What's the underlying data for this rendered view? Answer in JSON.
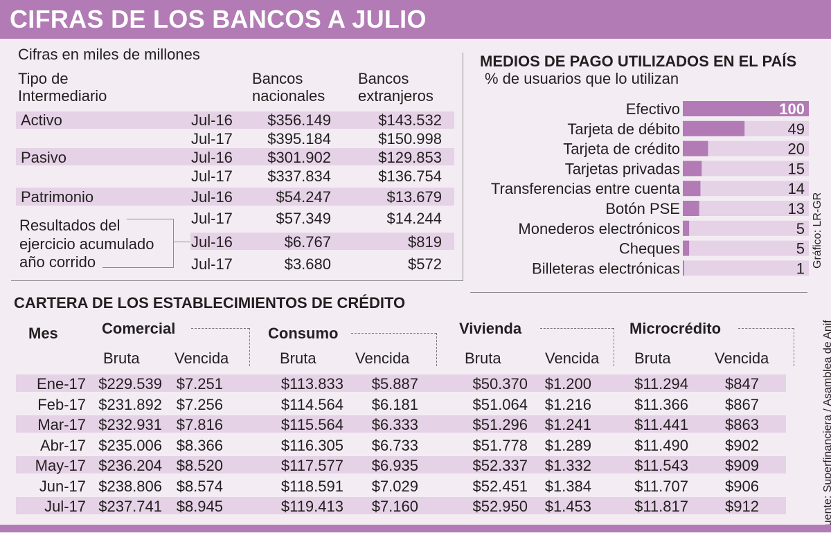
{
  "title": "CIFRAS DE LOS BANCOS A JULIO",
  "banks": {
    "subtitle": "Cifras en miles de millones",
    "col_tipo": [
      "Tipo de",
      "Intermediario"
    ],
    "col_nac": [
      "Bancos",
      "nacionales"
    ],
    "col_ext": [
      "Bancos",
      "extranjeros"
    ],
    "group_labels": {
      "activo": "Activo",
      "pasivo": "Pasivo",
      "patrimonio": "Patrimonio",
      "resultados": [
        "Resultados del",
        "ejercicio acumulado",
        "año corrido"
      ]
    },
    "rows": [
      {
        "period": "Jul-16",
        "nac": "$356.149",
        "ext": "$143.532"
      },
      {
        "period": "Jul-17",
        "nac": "$395.184",
        "ext": "$150.998"
      },
      {
        "period": "Jul-16",
        "nac": "$301.902",
        "ext": "$129.853"
      },
      {
        "period": "Jul-17",
        "nac": "$337.834",
        "ext": "$136.754"
      },
      {
        "period": "Jul-16",
        "nac": "$54.247",
        "ext": "$13.679"
      },
      {
        "period": "Jul-17",
        "nac": "$57.349",
        "ext": "$14.244"
      },
      {
        "period": "Jul-16",
        "nac": "$6.767",
        "ext": "$819"
      },
      {
        "period": "Jul-17",
        "nac": "$3.680",
        "ext": "$572"
      }
    ]
  },
  "chart_data": {
    "type": "bar",
    "title": "MEDIOS DE PAGO UTILIZADOS EN EL PAÍS",
    "subtitle": "% de usuarios que lo utilizan",
    "orientation": "horizontal",
    "xlim": [
      0,
      100
    ],
    "categories": [
      "Efectivo",
      "Tarjeta de débito",
      "Tarjeta de crédito",
      "Tarjetas privadas",
      "Transferencias entre cuenta",
      "Botón PSE",
      "Monederos electrónicos",
      "Cheques",
      "Billeteras electrónicas"
    ],
    "values": [
      100,
      49,
      20,
      15,
      14,
      13,
      5,
      5,
      1
    ],
    "colors": {
      "bar": "#b27bb5",
      "track": "#e5d2e6"
    }
  },
  "credit": {
    "title": "CARTERA DE LOS ESTABLECIMIENTOS DE CRÉDITO",
    "mes_label": "Mes",
    "groups": [
      "Comercial",
      "Consumo",
      "Vivienda",
      "Microcrédito"
    ],
    "bruta": "Bruta",
    "vencida": "Vencida",
    "rows": [
      [
        "Ene-17",
        "$229.539",
        "$7.251",
        "$113.833",
        "$5.887",
        "$50.370",
        "$1.200",
        "$11.294",
        "$847"
      ],
      [
        "Feb-17",
        "$231.892",
        "$7.256",
        "$114.564",
        "$6.181",
        "$51.064",
        "$1.216",
        "$11.366",
        "$867"
      ],
      [
        "Mar-17",
        "$232.931",
        "$7.816",
        "$115.564",
        "$6.333",
        "$51.296",
        "$1.241",
        "$11.441",
        "$863"
      ],
      [
        "Abr-17",
        "$235.006",
        "$8.366",
        "$116.305",
        "$6.733",
        "$51.778",
        "$1.289",
        "$11.490",
        "$902"
      ],
      [
        "May-17",
        "$236.204",
        "$8.520",
        "$117.577",
        "$6.935",
        "$52.337",
        "$1.332",
        "$11.543",
        "$909"
      ],
      [
        "Jun-17",
        "$238.806",
        "$8.574",
        "$118.591",
        "$7.029",
        "$52.451",
        "$1.384",
        "$11.707",
        "$906"
      ],
      [
        "Jul-17",
        "$237.741",
        "$8.945",
        "$119.413",
        "$7.160",
        "$52.950",
        "$1.453",
        "$11.817",
        "$912"
      ]
    ]
  },
  "source": "Fuente: Superfinanciera / Asamblea de Anif",
  "credit_graphic": "Gráfico: LR-GR"
}
